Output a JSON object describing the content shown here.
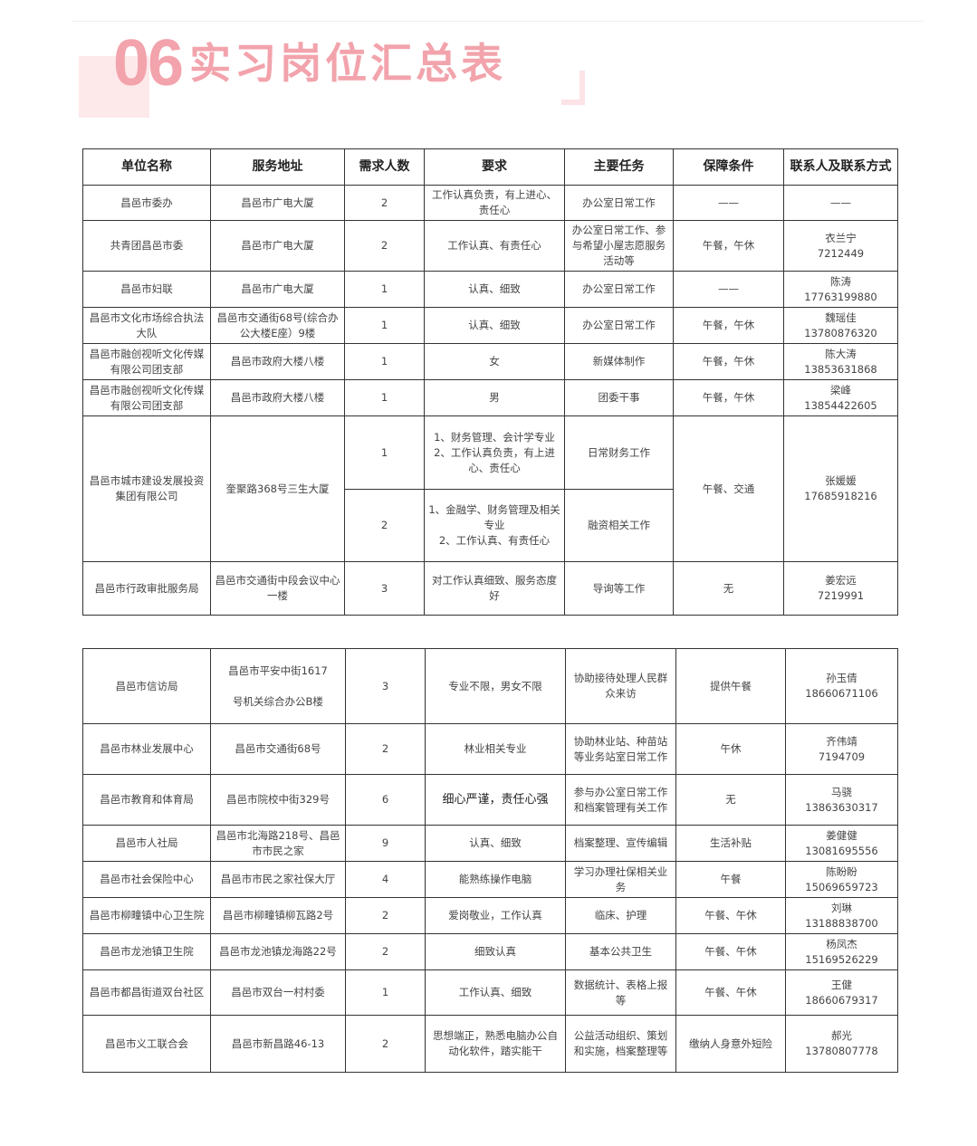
{
  "title": {
    "number": "06",
    "text": "实习岗位汇总表"
  },
  "colors": {
    "title": "#f2a3ac",
    "title_bg": "#fde8ea",
    "border": "#333333"
  },
  "table1": {
    "headers": [
      "单位名称",
      "服务地址",
      "需求人数",
      "要求",
      "主要任务",
      "保障条件",
      "联系人及联系方式"
    ],
    "rows": [
      {
        "unit": "昌邑市委办",
        "address": "昌邑市广电大厦",
        "count": "2",
        "requirement": "工作认真负责，有上进心、责任心",
        "task": "办公室日常工作",
        "benefits": "——",
        "contact_name": "——",
        "contact_phone": ""
      },
      {
        "unit": "共青团昌邑市委",
        "address": "昌邑市广电大厦",
        "count": "2",
        "requirement": "工作认真、有责任心",
        "task": "办公室日常工作、参与希望小屋志愿服务活动等",
        "benefits": "午餐，午休",
        "contact_name": "衣兰宁",
        "contact_phone": "7212449"
      },
      {
        "unit": "昌邑市妇联",
        "address": "昌邑市广电大厦",
        "count": "1",
        "requirement": "认真、细致",
        "task": "办公室日常工作",
        "benefits": "——",
        "contact_name": "陈涛",
        "contact_phone": "17763199880"
      },
      {
        "unit": "昌邑市文化市场综合执法大队",
        "address": "昌邑市交通街68号(综合办公大楼E座）9楼",
        "count": "1",
        "requirement": "认真、细致",
        "task": "办公室日常工作",
        "benefits": "午餐，午休",
        "contact_name": "魏瑶佳",
        "contact_phone": "13780876320"
      },
      {
        "unit": "昌邑市融创视听文化传媒有限公司团支部",
        "address": "昌邑市政府大楼八楼",
        "count": "1",
        "requirement": "女",
        "task": "新媒体制作",
        "benefits": "午餐，午休",
        "contact_name": "陈大涛",
        "contact_phone": "13853631868"
      },
      {
        "unit": "昌邑市融创视听文化传媒有限公司团支部",
        "address": "昌邑市政府大楼八楼",
        "count": "1",
        "requirement": "男",
        "task": "团委干事",
        "benefits": "午餐，午休",
        "contact_name": "梁峰",
        "contact_phone": "13854422605"
      },
      {
        "unit": "昌邑市城市建设发展投资集团有限公司",
        "address": "奎聚路368号三生大厦",
        "positions": [
          {
            "count": "1",
            "requirement": "1、财务管理、会计学专业\n2、工作认真负责，有上进心、责任心",
            "task": "日常财务工作"
          },
          {
            "count": "2",
            "requirement": "1、金融学、财务管理及相关专业\n2、工作认真、有责任心",
            "task": "融资相关工作"
          }
        ],
        "benefits": "午餐、交通",
        "contact_name": "张媛媛",
        "contact_phone": "17685918216"
      },
      {
        "unit": "昌邑市行政审批服务局",
        "address": "昌邑市交通街中段会议中心一楼",
        "count": "3",
        "requirement": "对工作认真细致、服务态度好",
        "task": "导询等工作",
        "benefits": "无",
        "contact_name": "姜宏远",
        "contact_phone": "7219991"
      }
    ]
  },
  "table2": {
    "rows": [
      {
        "unit": "昌邑市信访局",
        "address": "昌邑市平安中街1617\n\n号机关综合办公B楼",
        "count": "3",
        "requirement": "专业不限，男女不限",
        "task": "协助接待处理人民群众来访",
        "benefits": "提供午餐",
        "contact_name": "孙玉倩",
        "contact_phone": "18660671106"
      },
      {
        "unit": "昌邑市林业发展中心",
        "address": "昌邑市交通街68号",
        "count": "2",
        "requirement": "林业相关专业",
        "task": "协助林业站、种苗站等业务站室日常工作",
        "benefits": "午休",
        "contact_name": "齐伟靖",
        "contact_phone": "7194709"
      },
      {
        "unit": "昌邑市教育和体育局",
        "address": "昌邑市院校中街329号",
        "count": "6",
        "requirement": "细心严谨，责任心强",
        "task": "参与办公室日常工作和档案管理有关工作",
        "benefits": "无",
        "contact_name": "马骁",
        "contact_phone": "13863630317"
      },
      {
        "unit": "昌邑市人社局",
        "address": "昌邑市北海路218号、昌邑市市民之家",
        "count": "9",
        "requirement": "认真、细致",
        "task": "档案整理、宣传编辑",
        "benefits": "生活补贴",
        "contact_name": "姜健健",
        "contact_phone": "13081695556"
      },
      {
        "unit": "昌邑市社会保险中心",
        "address": "昌邑市市民之家社保大厅",
        "count": "4",
        "requirement": "能熟练操作电脑",
        "task": "学习办理社保相关业务",
        "benefits": "午餐",
        "contact_name": "陈盼盼",
        "contact_phone": "15069659723"
      },
      {
        "unit": "昌邑市柳疃镇中心卫生院",
        "address": "昌邑市柳疃镇柳瓦路2号",
        "count": "2",
        "requirement": "爱岗敬业，工作认真",
        "task": "临床、护理",
        "benefits": "午餐、午休",
        "contact_name": "刘琳",
        "contact_phone": "13188838700"
      },
      {
        "unit": "昌邑市龙池镇卫生院",
        "address": "昌邑市龙池镇龙海路22号",
        "count": "2",
        "requirement": "细致认真",
        "task": "基本公共卫生",
        "benefits": "午餐、午休",
        "contact_name": "杨凤杰",
        "contact_phone": "15169526229"
      },
      {
        "unit": "昌邑市都昌街道双台社区",
        "address": "昌邑市双台一村村委",
        "count": "1",
        "requirement": "工作认真、细致",
        "task": "数据统计、表格上报等",
        "benefits": "午餐、午休",
        "contact_name": "王健",
        "contact_phone": "18660679317"
      },
      {
        "unit": "昌邑市义工联合会",
        "address": "昌邑市新昌路46-13",
        "count": "2",
        "requirement": "思想端正，熟悉电脑办公自动化软件，踏实能干",
        "task": "公益活动组织、策划和实施，档案整理等",
        "benefits": "缴纳人身意外短险",
        "contact_name": "郝光",
        "contact_phone": "13780807778"
      }
    ]
  }
}
